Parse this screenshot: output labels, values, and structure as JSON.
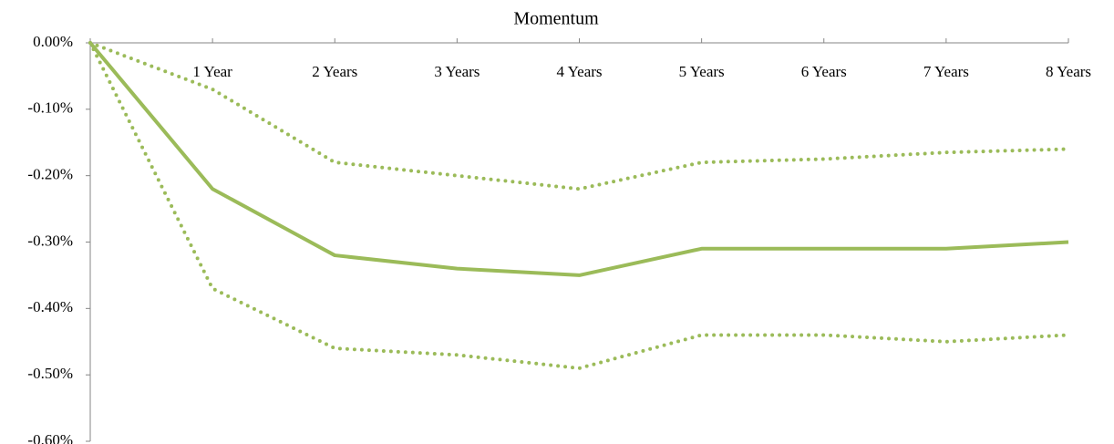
{
  "chart_data": {
    "type": "line",
    "title": "Momentum",
    "categories": [
      null,
      "1 Year",
      "2 Years",
      "3 Years",
      "4 Years",
      "5 Years",
      "6 Years",
      "7 Years",
      "8 Years"
    ],
    "series": [
      {
        "color": "#9bbb59",
        "line_style": "solid",
        "values": [
          0,
          -0.22,
          -0.32,
          -0.34,
          -0.35,
          -0.31,
          -0.31,
          -0.31,
          -0.3
        ]
      },
      {
        "color": "#9bbb59",
        "line_style": "dotted",
        "values": [
          0,
          -0.07,
          -0.18,
          -0.2,
          -0.22,
          -0.18,
          -0.175,
          -0.165,
          -0.16
        ]
      },
      {
        "color": "#9bbb59",
        "line_style": "dotted",
        "values": [
          0,
          -0.37,
          -0.46,
          -0.47,
          -0.49,
          -0.44,
          -0.44,
          -0.45,
          -0.44
        ]
      }
    ],
    "ylim": [
      -0.6,
      0
    ],
    "yticks": [
      {
        "value": 0,
        "label": "0.00%"
      },
      {
        "value": -0.1,
        "label": "-0.10%"
      },
      {
        "value": -0.2,
        "label": "-0.20%"
      },
      {
        "value": -0.3,
        "label": "-0.30%"
      },
      {
        "value": -0.4,
        "label": "-0.40%"
      },
      {
        "value": -0.5,
        "label": "-0.50%"
      },
      {
        "value": -0.6,
        "label": "-0.60%"
      }
    ],
    "grid": false
  }
}
